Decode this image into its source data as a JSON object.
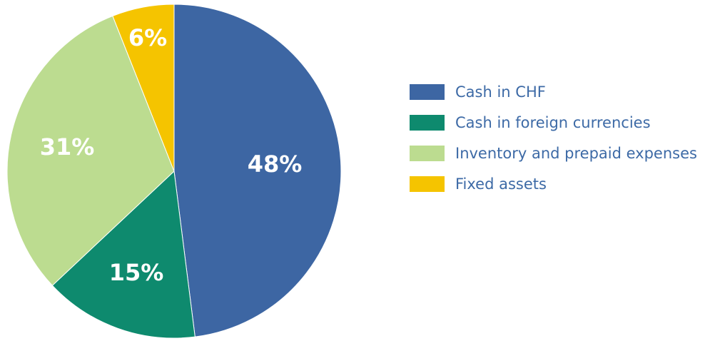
{
  "chart_data": {
    "type": "pie",
    "slices": [
      {
        "name": "Cash in CHF",
        "value": 48,
        "label": "48%",
        "color": "#3d66a3"
      },
      {
        "name": "Cash in foreign currencies",
        "value": 15,
        "label": "15%",
        "color": "#0e8a6e"
      },
      {
        "name": "Inventory and prepaid expenses",
        "value": 31,
        "label": "31%",
        "color": "#bcdc90"
      },
      {
        "name": "Fixed assets",
        "value": 6,
        "label": "6%",
        "color": "#f5c400"
      }
    ],
    "start": "top",
    "direction": "clockwise",
    "legend_position": "right"
  }
}
